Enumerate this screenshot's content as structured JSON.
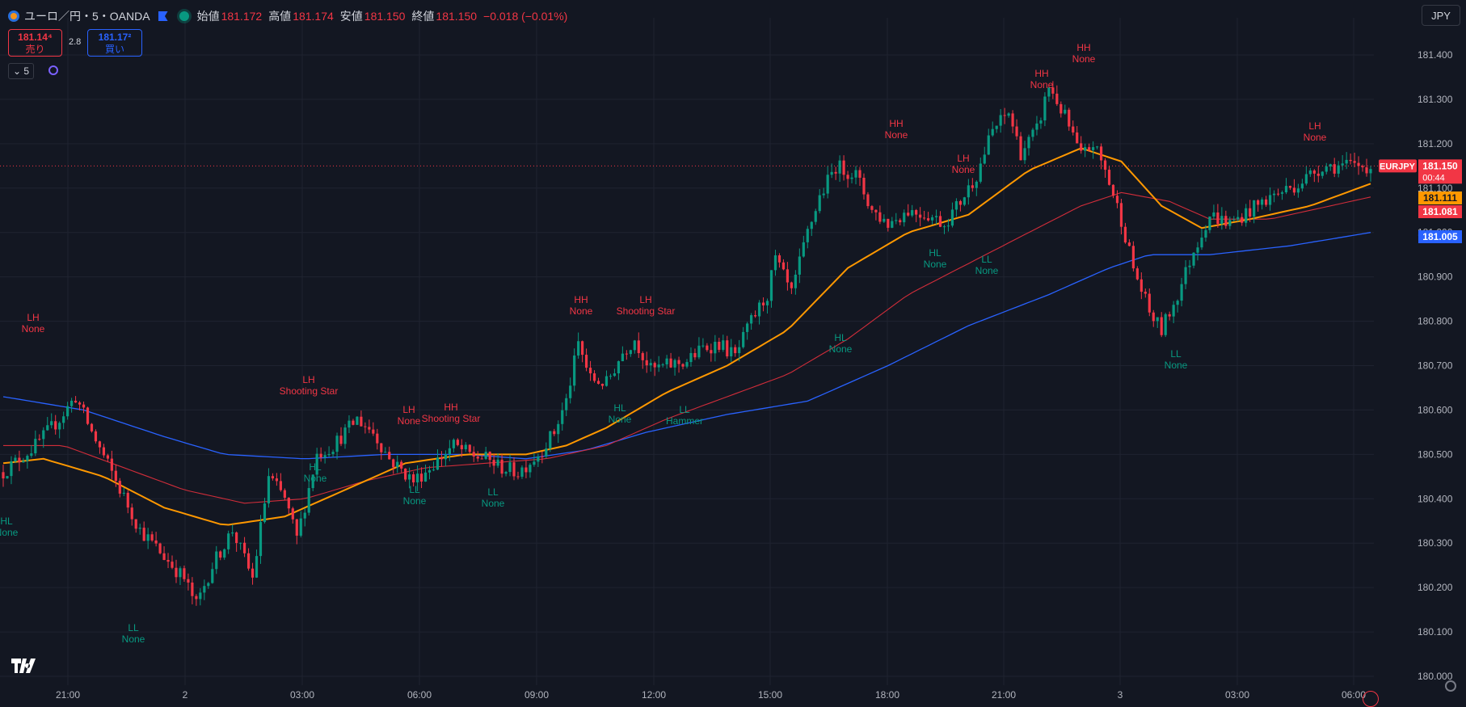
{
  "header": {
    "symbol": "ユーロ／円・5・OANDA",
    "open_label": "始値",
    "open_value": "181.172",
    "high_label": "高値",
    "high_value": "181.174",
    "low_label": "安値",
    "low_value": "181.150",
    "close_label": "終値",
    "close_value": "181.150",
    "change": "−0.018 (−0.01%)"
  },
  "trade": {
    "sell_price": "181.14⁴",
    "sell_label": "売り",
    "spread": "2.8",
    "buy_price": "181.17²",
    "buy_label": "買い"
  },
  "interval_label": "5",
  "currency_label": "JPY",
  "colors": {
    "background": "#131722",
    "grid": "#1f2330",
    "up": "#089981",
    "down": "#f23645",
    "ma_fast": "#ff9800",
    "ma_mid": "#d12d3a",
    "ma_slow": "#2962ff",
    "label_high": "#f23645",
    "label_low": "#089981"
  },
  "chart_data": {
    "type": "candlestick",
    "y_ticks": [
      "181.400",
      "181.300",
      "181.200",
      "181.100",
      "181.000",
      "180.900",
      "180.800",
      "180.700",
      "180.600",
      "180.500",
      "180.400",
      "180.300",
      "180.200",
      "180.100",
      "180.000"
    ],
    "x_ticks": [
      "21:00",
      "2",
      "03:00",
      "06:00",
      "09:00",
      "12:00",
      "15:00",
      "18:00",
      "21:00",
      "3",
      "03:00",
      "06:00"
    ],
    "ylim": [
      179.98,
      181.44
    ],
    "current_price": 181.15,
    "price_tags": [
      {
        "label": "EURJPY",
        "value": "181.150",
        "sub": "00:44",
        "color": "#f23645"
      },
      {
        "value": "181.111",
        "color": "#ff9800"
      },
      {
        "value": "181.081",
        "color": "#f23645"
      },
      {
        "value": "181.005",
        "color": "#2962ff"
      }
    ],
    "price_path": [
      [
        0,
        180.46
      ],
      [
        8,
        180.52
      ],
      [
        14,
        180.58
      ],
      [
        18,
        180.63
      ],
      [
        22,
        180.55
      ],
      [
        28,
        180.44
      ],
      [
        34,
        180.33
      ],
      [
        40,
        180.27
      ],
      [
        45,
        180.22
      ],
      [
        48,
        180.16
      ],
      [
        52,
        180.25
      ],
      [
        57,
        180.33
      ],
      [
        62,
        180.22
      ],
      [
        66,
        180.45
      ],
      [
        70,
        180.4
      ],
      [
        73,
        180.31
      ],
      [
        78,
        180.5
      ],
      [
        82,
        180.52
      ],
      [
        88,
        180.58
      ],
      [
        92,
        180.55
      ],
      [
        96,
        180.49
      ],
      [
        102,
        180.44
      ],
      [
        106,
        180.47
      ],
      [
        112,
        180.52
      ],
      [
        116,
        180.5
      ],
      [
        120,
        180.49
      ],
      [
        124,
        180.47
      ],
      [
        128,
        180.46
      ],
      [
        133,
        180.5
      ],
      [
        137,
        180.55
      ],
      [
        140,
        180.62
      ],
      [
        143,
        180.75
      ],
      [
        146,
        180.67
      ],
      [
        150,
        180.66
      ],
      [
        154,
        180.73
      ],
      [
        157,
        180.76
      ],
      [
        161,
        180.69
      ],
      [
        165,
        180.7
      ],
      [
        170,
        180.71
      ],
      [
        174,
        180.74
      ],
      [
        178,
        180.75
      ],
      [
        182,
        180.72
      ],
      [
        186,
        180.8
      ],
      [
        190,
        180.86
      ],
      [
        192,
        180.94
      ],
      [
        196,
        180.86
      ],
      [
        200,
        181.0
      ],
      [
        203,
        181.08
      ],
      [
        207,
        181.15
      ],
      [
        212,
        181.13
      ],
      [
        216,
        181.05
      ],
      [
        220,
        181.02
      ],
      [
        225,
        181.05
      ],
      [
        230,
        181.04
      ],
      [
        234,
        181.02
      ],
      [
        238,
        181.07
      ],
      [
        242,
        181.13
      ],
      [
        246,
        181.23
      ],
      [
        250,
        181.27
      ],
      [
        253,
        181.18
      ],
      [
        257,
        181.23
      ],
      [
        260,
        181.33
      ],
      [
        264,
        181.26
      ],
      [
        268,
        181.17
      ],
      [
        271,
        181.2
      ],
      [
        274,
        181.14
      ],
      [
        278,
        181.03
      ],
      [
        281,
        180.92
      ],
      [
        285,
        180.82
      ],
      [
        288,
        180.78
      ],
      [
        292,
        180.86
      ],
      [
        296,
        180.96
      ],
      [
        300,
        181.04
      ],
      [
        305,
        181.02
      ],
      [
        310,
        181.05
      ],
      [
        315,
        181.08
      ],
      [
        322,
        181.11
      ],
      [
        328,
        181.15
      ],
      [
        334,
        181.15
      ],
      [
        340,
        181.15
      ]
    ],
    "ma_fast": [
      [
        0,
        180.48
      ],
      [
        10,
        180.49
      ],
      [
        25,
        180.45
      ],
      [
        40,
        180.38
      ],
      [
        55,
        180.34
      ],
      [
        70,
        180.36
      ],
      [
        85,
        180.42
      ],
      [
        100,
        180.48
      ],
      [
        115,
        180.5
      ],
      [
        130,
        180.5
      ],
      [
        140,
        180.52
      ],
      [
        150,
        180.56
      ],
      [
        165,
        180.64
      ],
      [
        180,
        180.7
      ],
      [
        195,
        180.78
      ],
      [
        210,
        180.92
      ],
      [
        225,
        181.0
      ],
      [
        240,
        181.04
      ],
      [
        255,
        181.14
      ],
      [
        268,
        181.19
      ],
      [
        278,
        181.16
      ],
      [
        288,
        181.06
      ],
      [
        298,
        181.01
      ],
      [
        310,
        181.03
      ],
      [
        325,
        181.06
      ],
      [
        340,
        181.11
      ]
    ],
    "ma_mid": [
      [
        0,
        180.52
      ],
      [
        15,
        180.52
      ],
      [
        30,
        180.47
      ],
      [
        45,
        180.42
      ],
      [
        60,
        180.39
      ],
      [
        75,
        180.4
      ],
      [
        90,
        180.44
      ],
      [
        105,
        180.47
      ],
      [
        120,
        180.48
      ],
      [
        135,
        180.49
      ],
      [
        150,
        180.52
      ],
      [
        165,
        180.58
      ],
      [
        180,
        180.63
      ],
      [
        195,
        180.68
      ],
      [
        210,
        180.76
      ],
      [
        225,
        180.86
      ],
      [
        240,
        180.93
      ],
      [
        255,
        181.0
      ],
      [
        268,
        181.06
      ],
      [
        278,
        181.09
      ],
      [
        290,
        181.07
      ],
      [
        300,
        181.03
      ],
      [
        315,
        181.03
      ],
      [
        330,
        181.06
      ],
      [
        340,
        181.08
      ]
    ],
    "ma_slow": [
      [
        0,
        180.63
      ],
      [
        20,
        180.6
      ],
      [
        40,
        180.54
      ],
      [
        55,
        180.5
      ],
      [
        75,
        180.49
      ],
      [
        95,
        180.5
      ],
      [
        115,
        180.5
      ],
      [
        130,
        180.49
      ],
      [
        145,
        180.51
      ],
      [
        160,
        180.55
      ],
      [
        180,
        180.59
      ],
      [
        200,
        180.62
      ],
      [
        220,
        180.7
      ],
      [
        240,
        180.79
      ],
      [
        260,
        180.86
      ],
      [
        275,
        180.92
      ],
      [
        285,
        180.95
      ],
      [
        300,
        180.95
      ],
      [
        320,
        180.97
      ],
      [
        340,
        181.0
      ]
    ],
    "annotations": [
      {
        "kind": "high",
        "l1": "LH",
        "l2": "None",
        "x": 41,
        "y": 405
      },
      {
        "kind": "low",
        "l1": "HL",
        "l2": "None",
        "x": 8,
        "y": 657
      },
      {
        "kind": "low",
        "l1": "LL",
        "l2": "None",
        "x": 165,
        "y": 789
      },
      {
        "kind": "high",
        "l1": "LH",
        "l2": "Shooting Star",
        "x": 382,
        "y": 482
      },
      {
        "kind": "low",
        "l1": "HL",
        "l2": "None",
        "x": 390,
        "y": 590
      },
      {
        "kind": "high",
        "l1": "LH",
        "l2": "None",
        "x": 506,
        "y": 519
      },
      {
        "kind": "high",
        "l1": "HH",
        "l2": "Shooting Star",
        "x": 558,
        "y": 516
      },
      {
        "kind": "low",
        "l1": "LL",
        "l2": "None",
        "x": 513,
        "y": 618
      },
      {
        "kind": "low",
        "l1": "LL",
        "l2": "None",
        "x": 610,
        "y": 621
      },
      {
        "kind": "high",
        "l1": "HH",
        "l2": "None",
        "x": 719,
        "y": 383
      },
      {
        "kind": "high",
        "l1": "LH",
        "l2": "Shooting Star",
        "x": 799,
        "y": 383
      },
      {
        "kind": "low",
        "l1": "HL",
        "l2": "None",
        "x": 767,
        "y": 517
      },
      {
        "kind": "low",
        "l1": "LL",
        "l2": "Hammer",
        "x": 847,
        "y": 519
      },
      {
        "kind": "low",
        "l1": "HL",
        "l2": "None",
        "x": 1040,
        "y": 430
      },
      {
        "kind": "high",
        "l1": "HH",
        "l2": "None",
        "x": 1109,
        "y": 165
      },
      {
        "kind": "high",
        "l1": "LH",
        "l2": "None",
        "x": 1192,
        "y": 208
      },
      {
        "kind": "low",
        "l1": "HL",
        "l2": "None",
        "x": 1157,
        "y": 325
      },
      {
        "kind": "low",
        "l1": "LL",
        "l2": "None",
        "x": 1221,
        "y": 333
      },
      {
        "kind": "high",
        "l1": "HH",
        "l2": "None",
        "x": 1289,
        "y": 103
      },
      {
        "kind": "high",
        "l1": "HH",
        "l2": "None",
        "x": 1341,
        "y": 71
      },
      {
        "kind": "low",
        "l1": "LL",
        "l2": "None",
        "x": 1455,
        "y": 450
      },
      {
        "kind": "high",
        "l1": "LH",
        "l2": "None",
        "x": 1627,
        "y": 168
      }
    ]
  }
}
